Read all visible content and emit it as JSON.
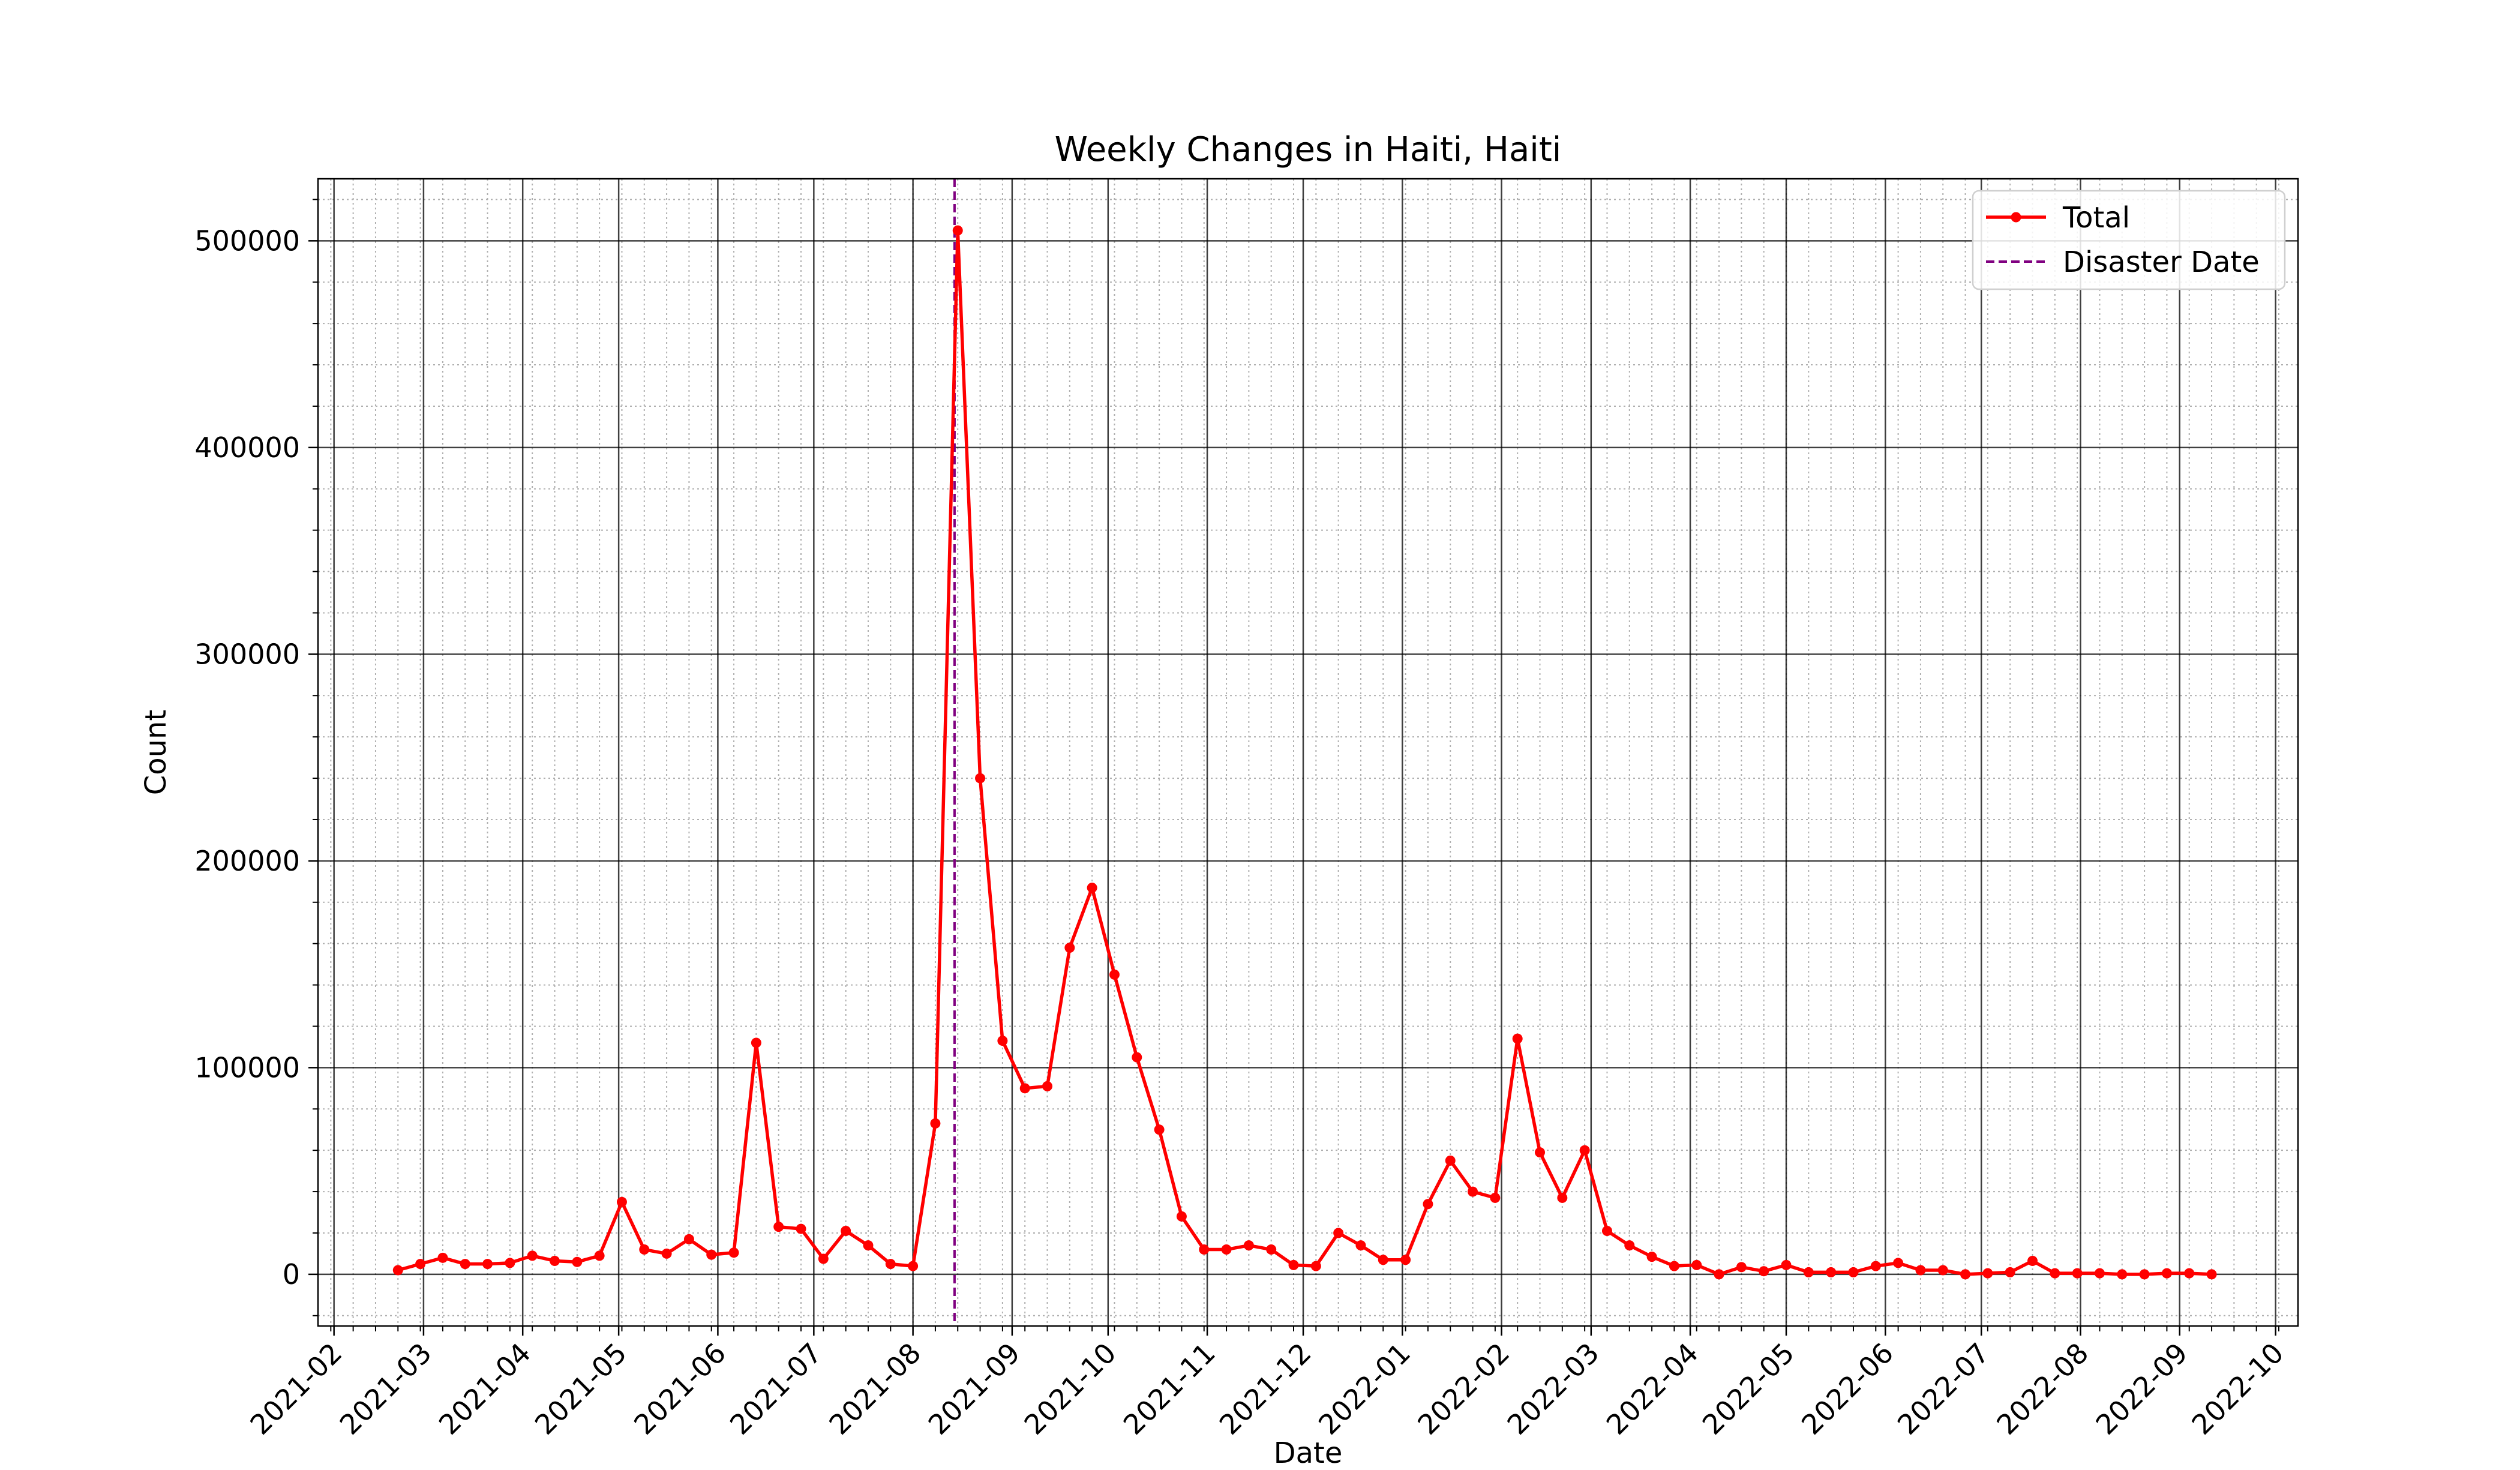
{
  "chart_data": {
    "type": "line",
    "title": "Weekly Changes in Haiti, Haiti",
    "xlabel": "Date",
    "ylabel": "Count",
    "x_axis": "date",
    "xlim": [
      "2021-01-27",
      "2022-10-08"
    ],
    "ylim": [
      -25000,
      530000
    ],
    "x_ticks": [
      "2021-02",
      "2021-03",
      "2021-04",
      "2021-05",
      "2021-06",
      "2021-07",
      "2021-08",
      "2021-09",
      "2021-10",
      "2021-11",
      "2021-12",
      "2022-01",
      "2022-02",
      "2022-03",
      "2022-04",
      "2022-05",
      "2022-06",
      "2022-07",
      "2022-08",
      "2022-09",
      "2022-10"
    ],
    "y_ticks": [
      "0",
      "100000",
      "200000",
      "300000",
      "400000",
      "500000"
    ],
    "grid": "major solid, minor dotted",
    "legend_placement": "top-right",
    "legend": [
      "Total",
      "Disaster Date"
    ],
    "disaster_date": "2021-08-14",
    "series": [
      {
        "name": "Total",
        "color": "#ff0000",
        "x": [
          "2021-02-21",
          "2021-02-28",
          "2021-03-07",
          "2021-03-14",
          "2021-03-21",
          "2021-03-28",
          "2021-04-04",
          "2021-04-11",
          "2021-04-18",
          "2021-04-25",
          "2021-05-02",
          "2021-05-09",
          "2021-05-16",
          "2021-05-23",
          "2021-05-30",
          "2021-06-06",
          "2021-06-13",
          "2021-06-20",
          "2021-06-27",
          "2021-07-04",
          "2021-07-11",
          "2021-07-18",
          "2021-07-25",
          "2021-08-01",
          "2021-08-08",
          "2021-08-15",
          "2021-08-22",
          "2021-08-29",
          "2021-09-05",
          "2021-09-12",
          "2021-09-19",
          "2021-09-26",
          "2021-10-03",
          "2021-10-10",
          "2021-10-17",
          "2021-10-24",
          "2021-10-31",
          "2021-11-07",
          "2021-11-14",
          "2021-11-21",
          "2021-11-28",
          "2021-12-05",
          "2021-12-12",
          "2021-12-19",
          "2021-12-26",
          "2022-01-02",
          "2022-01-09",
          "2022-01-16",
          "2022-01-23",
          "2022-01-30",
          "2022-02-06",
          "2022-02-13",
          "2022-02-20",
          "2022-02-27",
          "2022-03-06",
          "2022-03-13",
          "2022-03-20",
          "2022-03-27",
          "2022-04-03",
          "2022-04-10",
          "2022-04-17",
          "2022-04-24",
          "2022-05-01",
          "2022-05-08",
          "2022-05-15",
          "2022-05-22",
          "2022-05-29",
          "2022-06-05",
          "2022-06-12",
          "2022-06-19",
          "2022-06-26",
          "2022-07-03",
          "2022-07-10",
          "2022-07-17",
          "2022-07-24",
          "2022-07-31",
          "2022-08-07",
          "2022-08-14",
          "2022-08-21",
          "2022-08-28",
          "2022-09-04",
          "2022-09-11"
        ],
        "values": [
          2000,
          5000,
          8000,
          5000,
          5000,
          5500,
          9000,
          6500,
          6000,
          9000,
          35000,
          12000,
          10000,
          17000,
          9500,
          10500,
          112000,
          23000,
          22000,
          7500,
          21000,
          14000,
          5000,
          4000,
          73000,
          505000,
          240000,
          113000,
          90000,
          91000,
          158000,
          187000,
          145000,
          105000,
          70000,
          28000,
          12000,
          12000,
          14000,
          12000,
          4500,
          4000,
          20000,
          14000,
          7000,
          7000,
          34000,
          55000,
          40000,
          37000,
          114000,
          59000,
          37000,
          60000,
          21000,
          14000,
          8500,
          4000,
          4500,
          0,
          3500,
          1500,
          4500,
          1000,
          1000,
          1000,
          4000,
          5500,
          2000,
          2000,
          0,
          500,
          1000,
          6500,
          500,
          500,
          500,
          0,
          0,
          500,
          500,
          0
        ]
      }
    ]
  }
}
